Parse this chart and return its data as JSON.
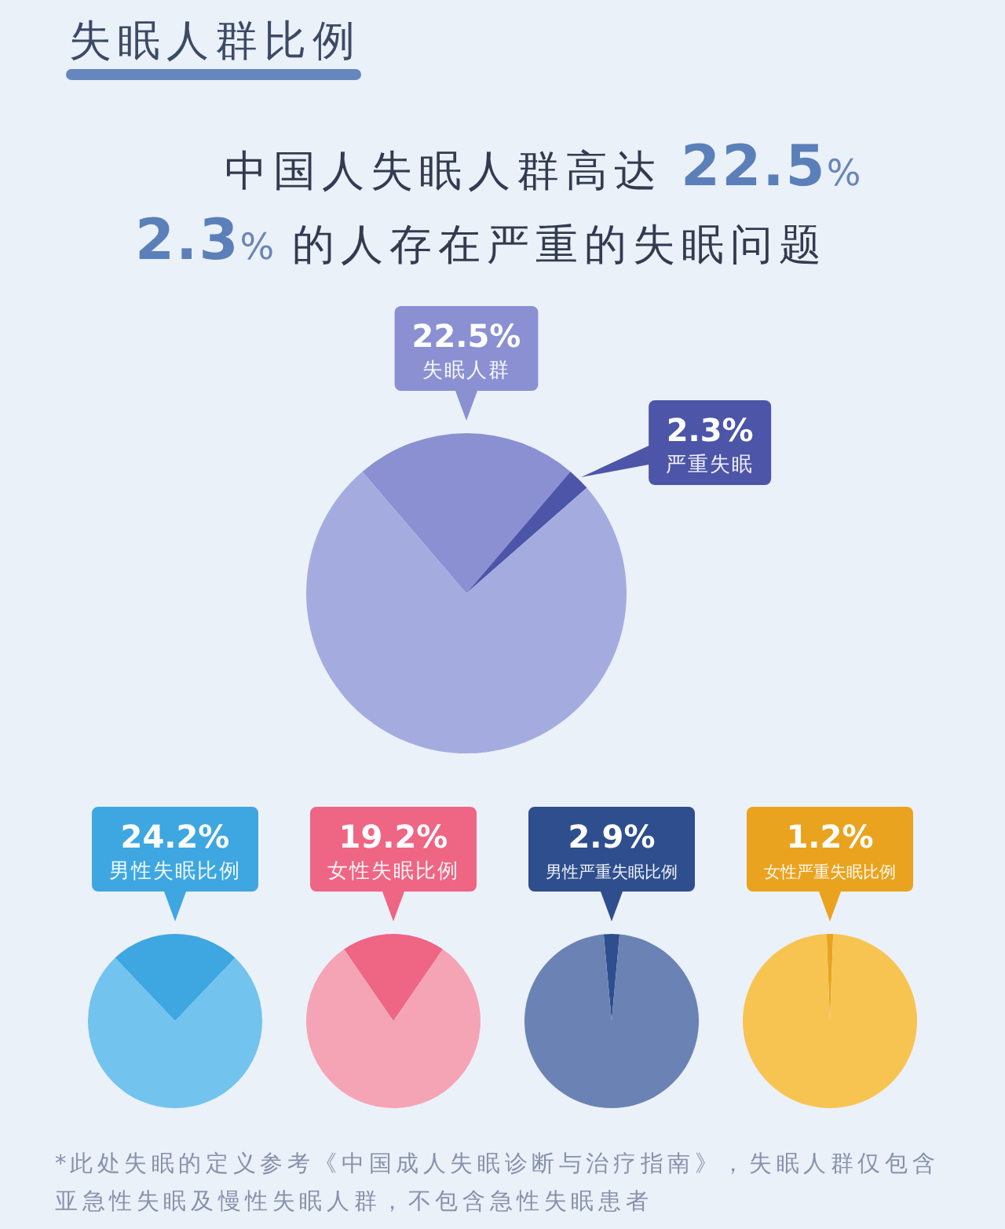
{
  "chart_data": [
    {
      "type": "pie",
      "title": "失眠人群比例",
      "annotations": [
        "中国人失眠人群高达 22.5%",
        "2.3% 的人存在严重的失眠问题"
      ],
      "categories": [
        "失眠人群",
        "严重失眠",
        null
      ],
      "values": [
        22.5,
        2.3,
        75.2
      ],
      "colors": [
        "#8a90d2",
        "#4d55a8",
        "#a4acdf"
      ],
      "value_labels": [
        "22.5%",
        "2.3%",
        null
      ]
    },
    {
      "type": "pie",
      "categories": [
        "男性失眠比例",
        null
      ],
      "values": [
        24.2,
        75.8
      ],
      "colors": [
        "#3ea7e1",
        "#72c3ee"
      ],
      "value_labels": [
        "24.2%",
        null
      ]
    },
    {
      "type": "pie",
      "categories": [
        "女性失眠比例",
        null
      ],
      "values": [
        19.2,
        80.8
      ],
      "colors": [
        "#ef6584",
        "#f5a4b6"
      ],
      "value_labels": [
        "19.2%",
        null
      ]
    },
    {
      "type": "pie",
      "categories": [
        "男性严重失眠比例",
        null
      ],
      "values": [
        2.9,
        97.1
      ],
      "colors": [
        "#2e4e8e",
        "#6b82b4"
      ],
      "value_labels": [
        "2.9%",
        null
      ]
    },
    {
      "type": "pie",
      "categories": [
        "女性严重失眠比例",
        null
      ],
      "values": [
        1.2,
        98.8
      ],
      "colors": [
        "#e9a31f",
        "#f7c452"
      ],
      "value_labels": [
        "1.2%",
        null
      ],
      "annotations": [
        "*此处失眠的定义参考《中国成人失眠诊断与治疗指南》，失眠人群仅包含亚急性失眠及慢性失眠人群，不包含急性失眠患者"
      ]
    }
  ]
}
